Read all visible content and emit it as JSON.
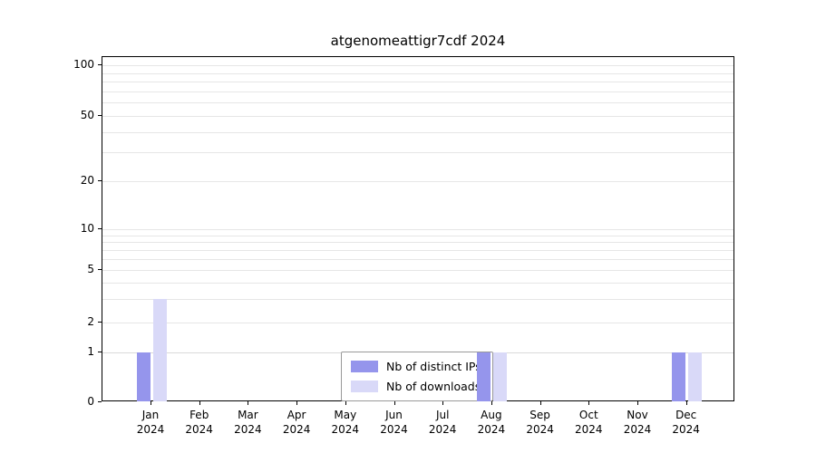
{
  "chart_data": {
    "type": "bar",
    "title": "atgenomeattigr7cdf 2024",
    "categories": [
      "Jan",
      "Feb",
      "Mar",
      "Apr",
      "May",
      "Jun",
      "Jul",
      "Aug",
      "Sep",
      "Oct",
      "Nov",
      "Dec"
    ],
    "year_label": "2024",
    "x_tick_labels": [
      "Jan 2024",
      "Feb 2024",
      "Mar 2024",
      "Apr 2024",
      "May 2024",
      "Jun 2024",
      "Jul 2024",
      "Aug 2024",
      "Sep 2024",
      "Oct 2024",
      "Nov 2024",
      "Dec 2024"
    ],
    "series": [
      {
        "name": "Nb of distinct IPs",
        "color": "#9595ec",
        "values": [
          1,
          0,
          0,
          0,
          0,
          0,
          0,
          1,
          0,
          0,
          0,
          1
        ]
      },
      {
        "name": "Nb of downloads",
        "color": "#d9d9f8",
        "values": [
          3,
          0,
          0,
          0,
          0,
          0,
          0,
          1,
          0,
          0,
          0,
          1
        ]
      }
    ],
    "ylabel": "",
    "xlabel": "",
    "yticks": [
      0,
      1,
      2,
      5,
      10,
      20,
      50,
      100
    ],
    "ylim": [
      0,
      100
    ],
    "yscale": "log-like with zero baseline",
    "grid": "horizontal minor log gridlines",
    "gridline_values": [
      1,
      2,
      3,
      4,
      5,
      6,
      7,
      8,
      9,
      10,
      20,
      30,
      40,
      50,
      60,
      70,
      80,
      90,
      100
    ],
    "legend_position": "inside bottom-center",
    "colors": {
      "distinct_ips": "#9595ec",
      "downloads": "#d9d9f8",
      "gridline": "#e6e6e6",
      "axis": "#000000"
    }
  }
}
